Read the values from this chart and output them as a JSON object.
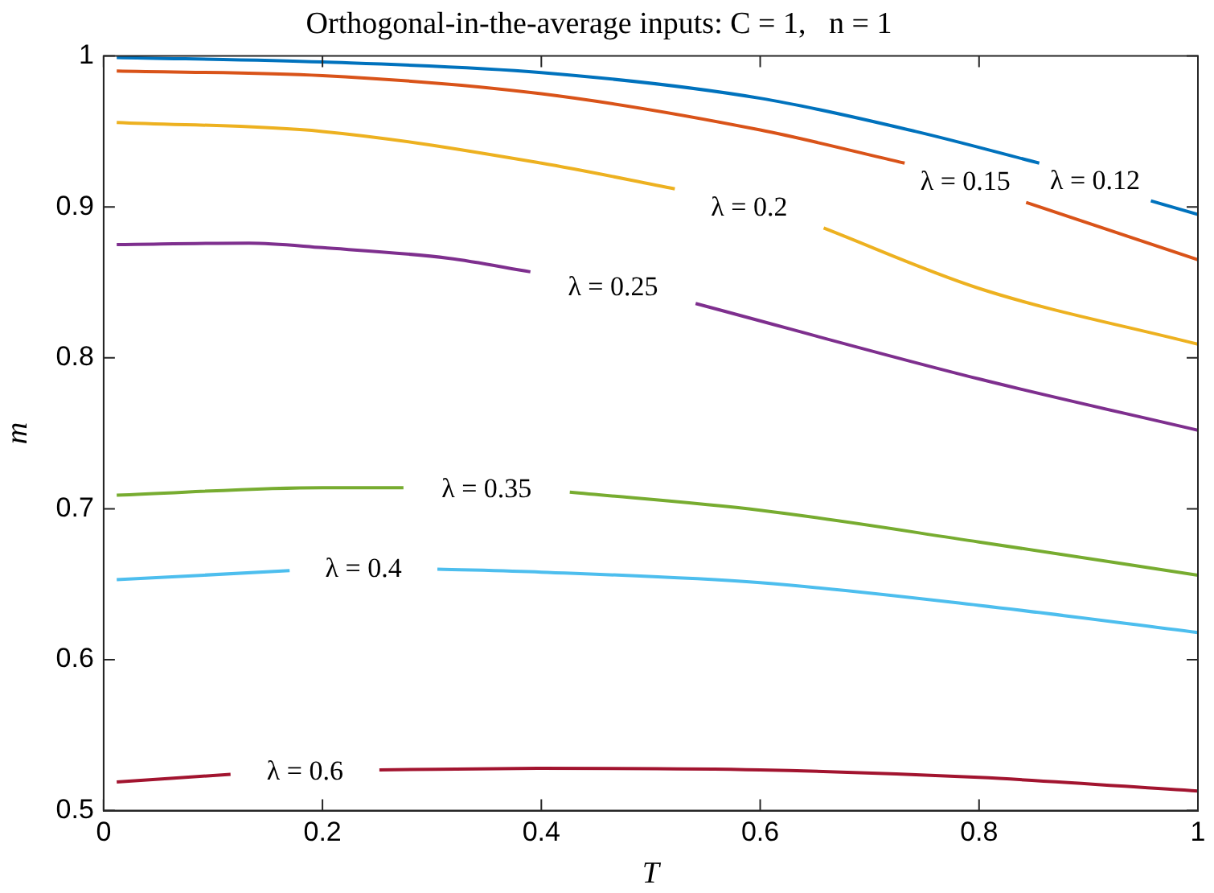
{
  "chart_data": {
    "type": "line",
    "title": "Orthogonal-in-the-average inputs: C = 1,   n = 1",
    "xlabel": "T",
    "ylabel": "m",
    "xlim": [
      0,
      1
    ],
    "xticks": [
      0,
      0.2,
      0.4,
      0.6,
      0.8,
      1
    ],
    "ylim": [
      0.5,
      1
    ],
    "yticks": [
      0.5,
      0.6,
      0.7,
      0.8,
      0.9,
      1
    ],
    "grid": false,
    "legend": false,
    "marker": "none",
    "line_style": "solid",
    "series": [
      {
        "name": "λ = 0.12",
        "color": "#0072bd",
        "x": [
          0.012,
          0.2,
          0.4,
          0.6,
          0.742,
          0.855,
          0.9,
          0.957,
          1.0
        ],
        "values": [
          0.999,
          0.996,
          0.989,
          0.972,
          0.95,
          0.929,
          null,
          0.904,
          0.895
        ]
      },
      {
        "name": "λ = 0.15",
        "color": "#d95319",
        "x": [
          0.012,
          0.2,
          0.4,
          0.6,
          0.732,
          0.79,
          0.843,
          1.0
        ],
        "values": [
          0.99,
          0.987,
          0.975,
          0.951,
          0.929,
          null,
          0.903,
          0.865
        ]
      },
      {
        "name": "λ = 0.2",
        "color": "#edb120",
        "x": [
          0.012,
          0.2,
          0.4,
          0.522,
          0.59,
          0.658,
          0.8,
          1.0
        ],
        "values": [
          0.956,
          0.95,
          0.929,
          0.912,
          null,
          0.886,
          0.846,
          0.809
        ]
      },
      {
        "name": "λ = 0.25",
        "color": "#7e2f8e",
        "x": [
          0.012,
          0.133,
          0.2,
          0.315,
          0.39,
          0.47,
          0.541,
          0.8,
          1.0
        ],
        "values": [
          0.875,
          0.876,
          0.873,
          0.866,
          0.857,
          null,
          0.836,
          0.786,
          0.752
        ]
      },
      {
        "name": "λ = 0.35",
        "color": "#77ac30",
        "x": [
          0.012,
          0.2,
          0.274,
          0.35,
          0.426,
          0.6,
          0.8,
          1.0
        ],
        "values": [
          0.709,
          0.714,
          0.714,
          null,
          0.711,
          0.699,
          0.678,
          0.656
        ]
      },
      {
        "name": "λ = 0.4",
        "color": "#4dbeee",
        "x": [
          0.012,
          0.17,
          0.24,
          0.305,
          0.4,
          0.6,
          0.8,
          1.0
        ],
        "values": [
          0.653,
          0.659,
          null,
          0.66,
          0.658,
          0.651,
          0.636,
          0.618
        ]
      },
      {
        "name": "λ = 0.6",
        "color": "#a2142f",
        "x": [
          0.012,
          0.116,
          0.18,
          0.252,
          0.4,
          0.6,
          0.8,
          1.0
        ],
        "values": [
          0.519,
          0.524,
          null,
          0.527,
          0.528,
          0.527,
          0.522,
          0.513
        ]
      }
    ]
  }
}
